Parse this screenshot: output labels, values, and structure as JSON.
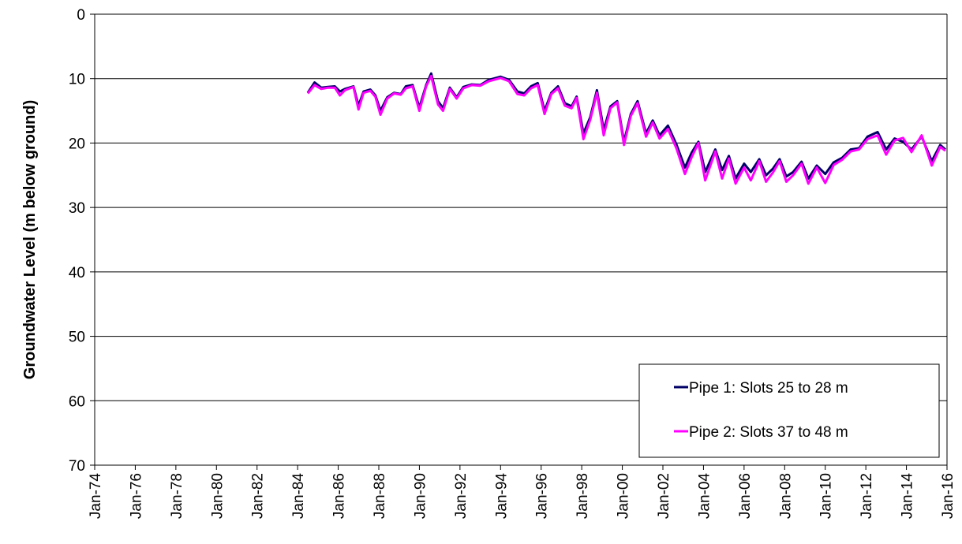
{
  "chart_data": {
    "type": "line",
    "y_label": "Groundwater Level (m below ground)",
    "y_inverted": true,
    "grid": true,
    "legend": "lower right",
    "xlim": [
      "1974-01",
      "2016-01"
    ],
    "xticks": [
      {
        "value": "1974-01",
        "label": "Jan-74"
      },
      {
        "value": "1976-01",
        "label": "Jan-76"
      },
      {
        "value": "1978-01",
        "label": "Jan-78"
      },
      {
        "value": "1980-01",
        "label": "Jan-80"
      },
      {
        "value": "1982-01",
        "label": "Jan-82"
      },
      {
        "value": "1984-01",
        "label": "Jan-84"
      },
      {
        "value": "1986-01",
        "label": "Jan-86"
      },
      {
        "value": "1988-01",
        "label": "Jan-88"
      },
      {
        "value": "1990-01",
        "label": "Jan-90"
      },
      {
        "value": "1992-01",
        "label": "Jan-92"
      },
      {
        "value": "1994-01",
        "label": "Jan-94"
      },
      {
        "value": "1996-01",
        "label": "Jan-96"
      },
      {
        "value": "1998-01",
        "label": "Jan-98"
      },
      {
        "value": "2000-01",
        "label": "Jan-00"
      },
      {
        "value": "2002-01",
        "label": "Jan-02"
      },
      {
        "value": "2004-01",
        "label": "Jan-04"
      },
      {
        "value": "2006-01",
        "label": "Jan-06"
      },
      {
        "value": "2008-01",
        "label": "Jan-08"
      },
      {
        "value": "2010-01",
        "label": "Jan-10"
      },
      {
        "value": "2012-01",
        "label": "Jan-12"
      },
      {
        "value": "2014-01",
        "label": "Jan-14"
      },
      {
        "value": "2016-01",
        "label": "Jan-16"
      }
    ],
    "ylim": [
      0,
      70
    ],
    "yticks": [
      0,
      10,
      20,
      30,
      40,
      50,
      60,
      70
    ],
    "x": [
      "1984-07",
      "1984-11",
      "1985-03",
      "1985-07",
      "1985-11",
      "1986-02",
      "1986-05",
      "1986-10",
      "1987-01",
      "1987-04",
      "1987-08",
      "1987-11",
      "1988-02",
      "1988-06",
      "1988-10",
      "1989-02",
      "1989-05",
      "1989-09",
      "1990-01",
      "1990-05",
      "1990-08",
      "1990-12",
      "1991-03",
      "1991-07",
      "1991-11",
      "1992-03",
      "1992-08",
      "1993-01",
      "1993-06",
      "1994-01",
      "1994-06",
      "1994-11",
      "1995-03",
      "1995-07",
      "1995-11",
      "1996-03",
      "1996-07",
      "1996-11",
      "1997-03",
      "1997-07",
      "1997-10",
      "1998-02",
      "1998-06",
      "1998-10",
      "1999-02",
      "1999-06",
      "1999-10",
      "2000-02",
      "2000-06",
      "2000-10",
      "2001-03",
      "2001-07",
      "2001-11",
      "2002-04",
      "2002-09",
      "2003-02",
      "2003-06",
      "2003-10",
      "2004-02",
      "2004-08",
      "2004-12",
      "2005-04",
      "2005-08",
      "2006-01",
      "2006-05",
      "2006-10",
      "2007-02",
      "2007-06",
      "2007-10",
      "2008-02",
      "2008-06",
      "2008-11",
      "2009-03",
      "2009-08",
      "2010-01",
      "2010-06",
      "2010-11",
      "2011-04",
      "2011-09",
      "2012-02",
      "2012-08",
      "2013-01",
      "2013-06",
      "2013-11",
      "2014-04",
      "2014-10",
      "2015-04",
      "2015-09",
      "2015-12"
    ],
    "series": [
      {
        "name": "Pipe 1: Slots 25 to 28 m",
        "color": "#000066",
        "values": [
          12.2,
          10.6,
          11.4,
          11.3,
          11.2,
          12.0,
          11.6,
          11.2,
          14.2,
          12.0,
          11.7,
          12.6,
          15.0,
          12.9,
          12.2,
          12.4,
          11.2,
          11.0,
          14.5,
          11.0,
          9.2,
          13.5,
          14.6,
          11.4,
          12.9,
          11.3,
          10.9,
          11.0,
          10.2,
          9.7,
          10.2,
          12.0,
          12.3,
          11.2,
          10.7,
          15.0,
          12.2,
          11.2,
          13.8,
          14.3,
          12.8,
          18.5,
          16.0,
          11.8,
          18.0,
          14.3,
          13.5,
          19.8,
          15.5,
          13.5,
          18.5,
          16.5,
          18.8,
          17.3,
          20.2,
          23.8,
          21.5,
          19.8,
          24.5,
          21.0,
          24.2,
          22.0,
          25.5,
          23.2,
          24.5,
          22.5,
          25.0,
          24.0,
          22.5,
          25.2,
          24.5,
          22.9,
          25.5,
          23.5,
          24.8,
          23.0,
          22.3,
          21.0,
          20.8,
          19.0,
          18.3,
          21.0,
          19.3,
          19.8,
          21.0,
          19.0,
          22.8,
          20.3,
          21.0
        ]
      },
      {
        "name": "Pipe 2: Slots 37 to 48 m",
        "color": "#ff00ff",
        "values": [
          12.3,
          11.0,
          11.6,
          11.4,
          11.4,
          12.6,
          11.8,
          11.3,
          14.8,
          12.2,
          11.9,
          12.8,
          15.6,
          13.1,
          12.3,
          12.5,
          11.5,
          11.2,
          15.0,
          11.2,
          9.6,
          14.0,
          15.0,
          11.6,
          13.1,
          11.5,
          11.0,
          11.1,
          10.4,
          9.9,
          10.4,
          12.4,
          12.6,
          11.5,
          11.0,
          15.5,
          12.4,
          11.5,
          14.2,
          14.6,
          13.0,
          19.4,
          16.4,
          12.2,
          18.8,
          14.6,
          13.7,
          20.3,
          15.8,
          13.8,
          19.0,
          16.8,
          19.3,
          17.8,
          20.8,
          24.8,
          22.2,
          20.0,
          25.8,
          21.3,
          25.5,
          22.4,
          26.3,
          23.8,
          25.8,
          22.8,
          26.0,
          24.6,
          22.8,
          26.0,
          25.0,
          23.2,
          26.3,
          23.8,
          26.2,
          23.4,
          22.6,
          21.3,
          21.0,
          19.4,
          18.8,
          21.8,
          19.6,
          19.2,
          21.4,
          18.8,
          23.5,
          20.6,
          21.2
        ]
      }
    ]
  }
}
